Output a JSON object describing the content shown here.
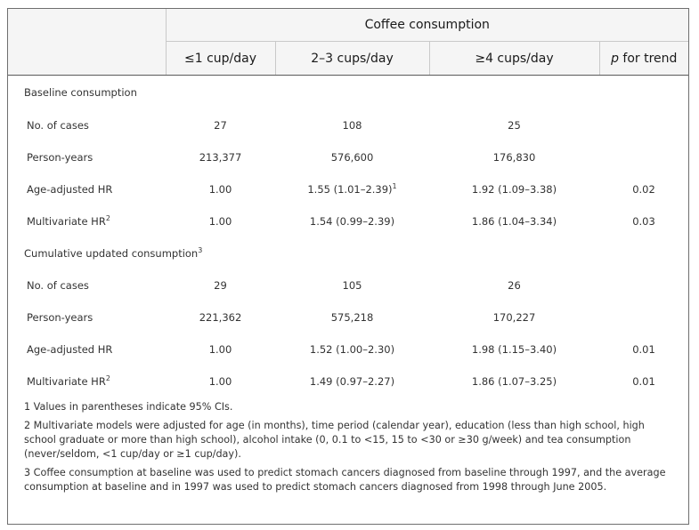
{
  "table": {
    "group_header": "Coffee consumption",
    "columns": [
      "≤1 cup/day",
      "2–3 cups/day",
      "≥4 cups/day"
    ],
    "trend_header": {
      "italic": "p",
      "rest": " for trend"
    },
    "sections": [
      {
        "title": "Baseline consumption",
        "title_sup": "",
        "rows": [
          {
            "label": "No. of cases",
            "label_sup": "",
            "c1": "27",
            "c2": "108",
            "c2_sup": "",
            "c3": "25",
            "trend": ""
          },
          {
            "label": "Person-years",
            "label_sup": "",
            "c1": "213,377",
            "c2": "576,600",
            "c2_sup": "",
            "c3": "176,830",
            "trend": ""
          },
          {
            "label": "Age-adjusted HR",
            "label_sup": "",
            "c1": "1.00",
            "c2": "1.55 (1.01–2.39)",
            "c2_sup": "1",
            "c3": "1.92 (1.09–3.38)",
            "trend": "0.02"
          },
          {
            "label": "Multivariate HR",
            "label_sup": "2",
            "c1": "1.00",
            "c2": "1.54 (0.99–2.39)",
            "c2_sup": "",
            "c3": "1.86 (1.04–3.34)",
            "trend": "0.03"
          }
        ]
      },
      {
        "title": "Cumulative updated consumption",
        "title_sup": "3",
        "rows": [
          {
            "label": "No. of cases",
            "label_sup": "",
            "c1": "29",
            "c2": "105",
            "c2_sup": "",
            "c3": "26",
            "trend": ""
          },
          {
            "label": "Person-years",
            "label_sup": "",
            "c1": "221,362",
            "c2": "575,218",
            "c2_sup": "",
            "c3": "170,227",
            "trend": ""
          },
          {
            "label": "Age-adjusted HR",
            "label_sup": "",
            "c1": "1.00",
            "c2": "1.52 (1.00–2.30)",
            "c2_sup": "",
            "c3": "1.98 (1.15–3.40)",
            "trend": "0.01"
          },
          {
            "label": "Multivariate HR",
            "label_sup": "2",
            "c1": "1.00",
            "c2": "1.49 (0.97–2.27)",
            "c2_sup": "",
            "c3": "1.86 (1.07–3.25)",
            "trend": "0.01"
          }
        ]
      }
    ]
  },
  "footnotes": [
    "1 Values in parentheses indicate 95% CIs.",
    "2 Multivariate models were adjusted for age (in months), time period (calendar year), education (less than high school, high school graduate or more than high school), alcohol intake (0, 0.1 to <15, 15 to <30 or ≥30 g/week) and tea consumption (never/seldom, <1 cup/day or ≥1 cup/day).",
    "3 Coffee consumption at baseline was used to predict stomach cancers diagnosed from baseline through 1997, and the average consumption at baseline and in 1997 was used to predict stomach cancers diagnosed from 1998 through June 2005."
  ]
}
